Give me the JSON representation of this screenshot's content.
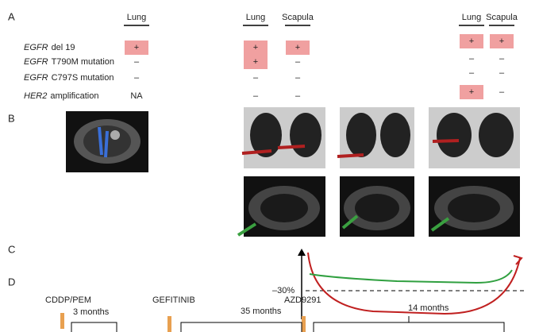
{
  "panels": {
    "a": "A",
    "b": "B",
    "c": "C",
    "d": "D"
  },
  "table": {
    "headers": [
      "Lung",
      "Lung",
      "Scapula",
      "Lung",
      "Scapula"
    ],
    "rows": [
      {
        "gene": "EGFR",
        "label": "del 19",
        "cells": [
          "+",
          "+",
          "+",
          "+",
          "+"
        ]
      },
      {
        "gene": "EGFR",
        "label": "T790M mutation",
        "cells": [
          "–",
          "+",
          "–",
          "–",
          "–"
        ]
      },
      {
        "gene": "EGFR",
        "label": "C797S mutation",
        "cells": [
          "–",
          "–",
          "–",
          "–",
          "–"
        ]
      },
      {
        "gene": "HER2",
        "label": "amplification",
        "cells": [
          "NA",
          "–",
          "–",
          "+",
          "–"
        ]
      }
    ]
  },
  "response": {
    "threshold_label": "–30%"
  },
  "timeline": [
    {
      "drug": "CDDP/PEM",
      "duration": "3 months"
    },
    {
      "drug": "GEFITINIB",
      "duration": "35 months"
    },
    {
      "drug": "AZD9291",
      "duration": "14 months"
    }
  ]
}
